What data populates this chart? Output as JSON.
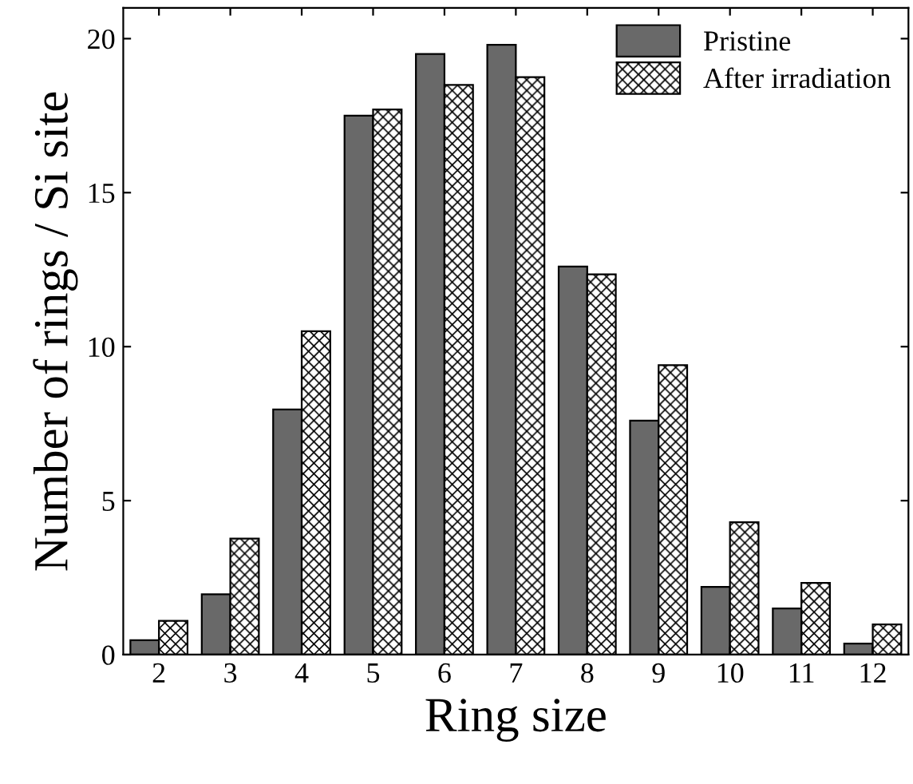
{
  "chart_data": {
    "type": "bar",
    "xlabel": "Ring size",
    "ylabel": "Number of rings / Si site",
    "categories": [
      "2",
      "3",
      "4",
      "5",
      "6",
      "7",
      "8",
      "9",
      "10",
      "11",
      "12"
    ],
    "series": [
      {
        "name": "Pristine",
        "color": "#696969",
        "values": [
          0.47,
          1.96,
          7.96,
          17.5,
          19.5,
          19.8,
          12.6,
          7.6,
          2.2,
          1.5,
          0.36
        ]
      },
      {
        "name": "After irradiation",
        "color": "#000000",
        "values": [
          1.1,
          3.77,
          10.5,
          17.7,
          18.5,
          18.75,
          12.35,
          9.4,
          4.3,
          2.33,
          0.98
        ]
      }
    ],
    "ylim": [
      0,
      21
    ],
    "yticks": [
      0,
      5,
      10,
      15,
      20
    ],
    "grid": false,
    "legend": "top right"
  }
}
